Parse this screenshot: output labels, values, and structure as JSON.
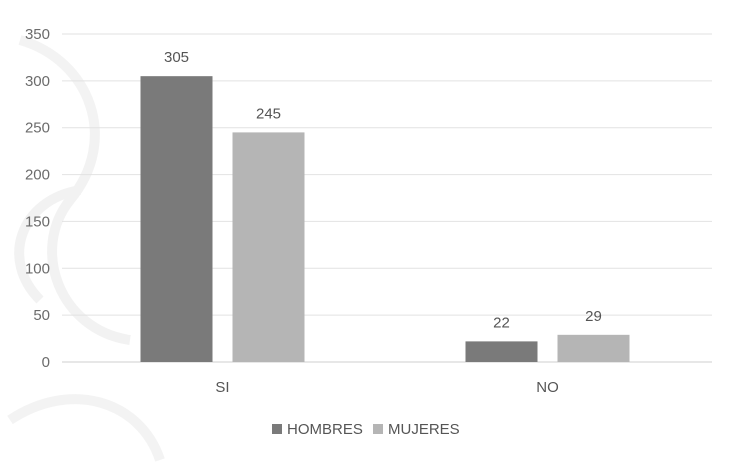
{
  "chart_data": {
    "type": "bar",
    "categories": [
      "SI",
      "NO"
    ],
    "series": [
      {
        "name": "HOMBRES",
        "values": [
          305,
          22
        ],
        "color": "#7a7a7a"
      },
      {
        "name": "MUJERES",
        "values": [
          245,
          29
        ],
        "color": "#b5b5b5"
      }
    ],
    "ylim": [
      0,
      350
    ],
    "yticks": [
      0,
      50,
      100,
      150,
      200,
      250,
      300,
      350
    ],
    "grid": true,
    "legend": "bottom-center",
    "title": "",
    "xlabel": "",
    "ylabel": ""
  }
}
